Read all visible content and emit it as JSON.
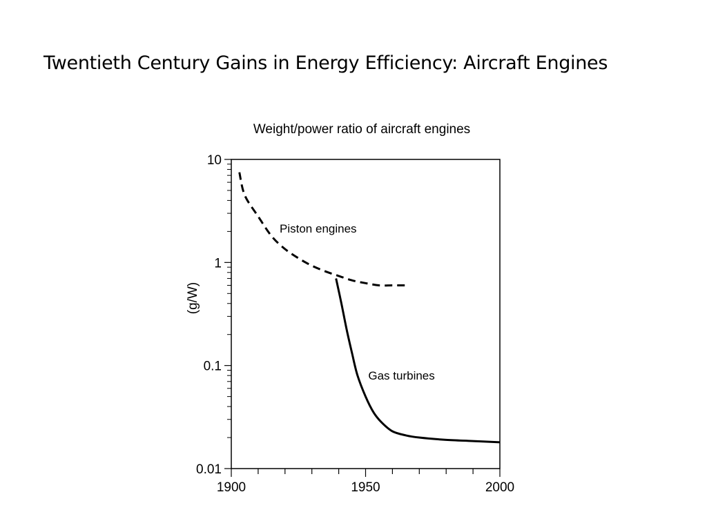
{
  "slide": {
    "title": "Twentieth Century Gains in Energy Efficiency: Aircraft Engines"
  },
  "chart_data": {
    "type": "line",
    "title": "Weight/power ratio of aircraft engines",
    "xlabel": "",
    "ylabel": "(g/W)",
    "xlim": [
      1900,
      2000
    ],
    "ylim": [
      0.01,
      10
    ],
    "yscale": "log",
    "grid": false,
    "legend": "none",
    "x_ticks": [
      1900,
      1950,
      2000
    ],
    "y_ticks": [
      {
        "value": 10,
        "label": "10"
      },
      {
        "value": 1,
        "label": "1"
      },
      {
        "value": 0.1,
        "label": "0.1"
      },
      {
        "value": 0.01,
        "label": "0.01"
      }
    ],
    "series": [
      {
        "name": "Piston engines",
        "style": "dashed",
        "color": "#000000",
        "x": [
          1903,
          1905,
          1910,
          1915,
          1920,
          1925,
          1930,
          1935,
          1940,
          1945,
          1950,
          1955,
          1960,
          1965
        ],
        "y": [
          7.5,
          4.5,
          2.8,
          1.8,
          1.35,
          1.1,
          0.93,
          0.82,
          0.74,
          0.67,
          0.63,
          0.6,
          0.6,
          0.6
        ]
      },
      {
        "name": "Gas turbines",
        "style": "solid",
        "color": "#000000",
        "x": [
          1939,
          1941,
          1943,
          1945,
          1947,
          1950,
          1953,
          1956,
          1960,
          1965,
          1970,
          1980,
          1990,
          2000
        ],
        "y": [
          0.7,
          0.4,
          0.22,
          0.13,
          0.08,
          0.05,
          0.035,
          0.028,
          0.023,
          0.021,
          0.02,
          0.019,
          0.0185,
          0.018
        ]
      }
    ]
  }
}
